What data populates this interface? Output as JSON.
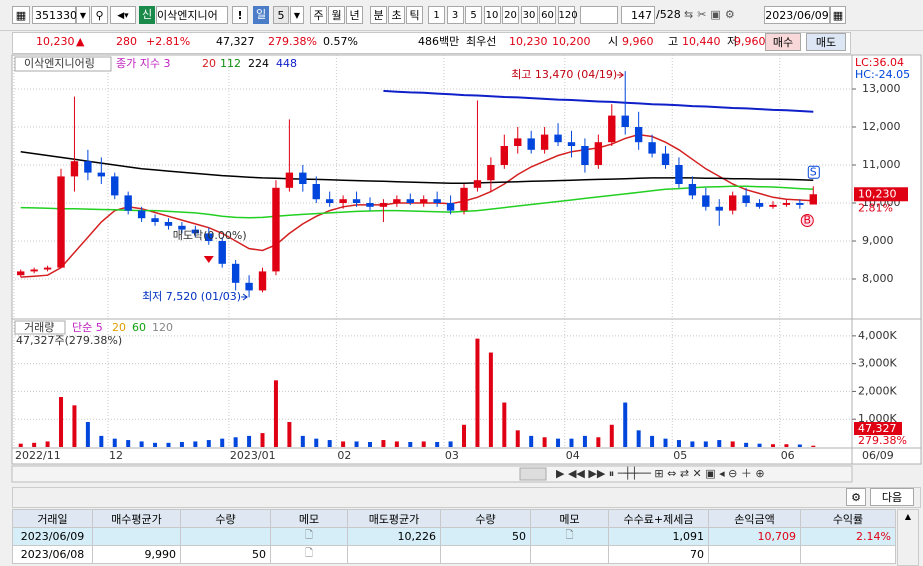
{
  "toolbar": {
    "code": "351330",
    "badge": "신",
    "name": "이삭엔지니어",
    "alert": "!",
    "period": "일",
    "period_n": "5",
    "periods": [
      "주",
      "월",
      "년",
      "분",
      "초",
      "틱"
    ],
    "intervals": [
      "1",
      "3",
      "5",
      "10",
      "20",
      "30",
      "60",
      "120"
    ],
    "count": "147",
    "total": "/528",
    "date": "2023/06/09"
  },
  "quote": {
    "price": "10,230",
    "arrow": "▲",
    "change": "280",
    "change_pct": "+2.81%",
    "volume": "47,327",
    "volume_ratio": "279.38%",
    "turnover": "0.57%",
    "amount": "486백만",
    "best_label": "최우선",
    "ask": "10,230",
    "bid": "10,200",
    "open_label": "시",
    "open": "9,960",
    "high_label": "고",
    "high": "10,440",
    "low_label": "저",
    "low": "9,960",
    "buy": "매수",
    "sell": "매도"
  },
  "chart_data": [
    {
      "type": "candlestick",
      "title": "이삭엔지니어링",
      "indicator": "종가 지수 3",
      "categories": [
        "2022/11",
        null,
        null,
        null,
        null,
        null,
        null,
        "12",
        null,
        null,
        null,
        null,
        null,
        null,
        null,
        null,
        "2023/01",
        null,
        null,
        null,
        null,
        null,
        null,
        null,
        "02",
        null,
        null,
        null,
        null,
        null,
        null,
        null,
        "03",
        null,
        null,
        null,
        null,
        null,
        null,
        null,
        null,
        "04",
        null,
        null,
        null,
        null,
        null,
        null,
        null,
        "05",
        null,
        null,
        null,
        null,
        null,
        null,
        null,
        "06",
        null,
        null
      ],
      "open": [
        8100,
        8200,
        8250,
        8300,
        10700,
        11100,
        10800,
        10700,
        10200,
        9800,
        9600,
        9500,
        9400,
        9300,
        9200,
        9000,
        8400,
        7900,
        7700,
        8200,
        10400,
        10800,
        10500,
        10100,
        10000,
        10100,
        10000,
        9900,
        10000,
        10100,
        10000,
        10100,
        10000,
        9800,
        10400,
        10600,
        11000,
        11500,
        11700,
        11400,
        11800,
        11600,
        11500,
        11000,
        11600,
        12300,
        12000,
        11600,
        11300,
        11000,
        10500,
        10200,
        9900,
        9800,
        10200,
        10000,
        9900,
        9950,
        10000,
        9960
      ],
      "high": [
        8250,
        8300,
        8350,
        10900,
        12800,
        11400,
        11200,
        10800,
        10300,
        9900,
        9700,
        9600,
        9500,
        9400,
        9350,
        9100,
        8500,
        8100,
        8300,
        10600,
        12200,
        11000,
        10700,
        10300,
        10200,
        10300,
        10150,
        10100,
        10200,
        10250,
        10200,
        10300,
        10200,
        10500,
        12700,
        11200,
        11800,
        12000,
        11900,
        12000,
        12100,
        11900,
        11700,
        11800,
        12600,
        13470,
        12400,
        11800,
        11500,
        11200,
        10700,
        10400,
        10100,
        10300,
        10400,
        10100,
        10050,
        10100,
        10100,
        10440
      ],
      "low": [
        8050,
        8150,
        8200,
        8300,
        10300,
        10600,
        10500,
        10100,
        9700,
        9500,
        9400,
        9300,
        9200,
        9100,
        8900,
        8300,
        7700,
        7520,
        7650,
        8100,
        10300,
        10300,
        10000,
        9900,
        9850,
        9900,
        9800,
        9500,
        9900,
        9950,
        9900,
        9900,
        9700,
        9700,
        10300,
        10300,
        10900,
        11300,
        11300,
        11300,
        11500,
        11200,
        10800,
        10900,
        11500,
        11800,
        11400,
        11200,
        10900,
        10400,
        10100,
        9800,
        9400,
        9700,
        9900,
        9850,
        9850,
        9900,
        9850,
        9960
      ],
      "close": [
        8200,
        8250,
        8300,
        10700,
        11100,
        10800,
        10700,
        10200,
        9800,
        9600,
        9500,
        9400,
        9300,
        9200,
        9000,
        8400,
        7900,
        7700,
        8200,
        10400,
        10800,
        10500,
        10100,
        10000,
        10100,
        10000,
        9900,
        10000,
        10100,
        10000,
        10100,
        10000,
        9800,
        10400,
        10600,
        11000,
        11500,
        11700,
        11400,
        11800,
        11600,
        11500,
        11000,
        11600,
        12300,
        12000,
        11600,
        11300,
        11000,
        10500,
        10200,
        9900,
        9800,
        10200,
        10000,
        9900,
        9950,
        10000,
        9950,
        10230
      ],
      "up_color": "#e00014",
      "down_color": "#0046dc",
      "series": [
        {
          "name": "20",
          "color": "#d42020",
          "values": [
            8050,
            8070,
            8100,
            8300,
            8700,
            9100,
            9500,
            9800,
            9900,
            9850,
            9750,
            9650,
            9550,
            9450,
            9350,
            9200,
            9000,
            8800,
            8750,
            8900,
            9200,
            9450,
            9650,
            9800,
            9900,
            9950,
            9950,
            9950,
            10000,
            10000,
            10000,
            10000,
            9980,
            10050,
            10150,
            10300,
            10500,
            10750,
            10950,
            11100,
            11250,
            11350,
            11400,
            11450,
            11550,
            11700,
            11800,
            11750,
            11600,
            11400,
            11150,
            10900,
            10700,
            10500,
            10350,
            10250,
            10150,
            10100,
            10080,
            10060
          ]
        },
        {
          "name": "112",
          "color": "#22d022",
          "values": [
            9880,
            9870,
            9860,
            9850,
            9850,
            9840,
            9830,
            9820,
            9810,
            9800,
            9800,
            9780,
            9760,
            9740,
            9700,
            9650,
            9620,
            9610,
            9620,
            9650,
            9680,
            9700,
            9720,
            9740,
            9760,
            9780,
            9790,
            9800,
            9800,
            9790,
            9780,
            9770,
            9760,
            9780,
            9800,
            9840,
            9880,
            9920,
            9960,
            10000,
            10040,
            10080,
            10120,
            10160,
            10200,
            10240,
            10280,
            10320,
            10360,
            10380,
            10400,
            10420,
            10430,
            10440,
            10440,
            10430,
            10420,
            10400,
            10380,
            10360
          ]
        },
        {
          "name": "224",
          "color": "#000000",
          "values": [
            11350,
            11300,
            11250,
            11200,
            11150,
            11100,
            11050,
            11000,
            10950,
            10900,
            10870,
            10840,
            10810,
            10780,
            10750,
            10720,
            10700,
            10680,
            10660,
            10650,
            10640,
            10630,
            10620,
            10610,
            10600,
            10590,
            10580,
            10570,
            10560,
            10550,
            10540,
            10530,
            10520,
            10520,
            10530,
            10540,
            10550,
            10560,
            10570,
            10580,
            10590,
            10600,
            10610,
            10620,
            10630,
            10640,
            10650,
            10660,
            10660,
            10660,
            10660,
            10650,
            10650,
            10640,
            10640,
            10630,
            10630,
            10620,
            10610,
            10600
          ]
        },
        {
          "name": "448",
          "color": "#1020c8",
          "values": [
            null,
            null,
            null,
            null,
            null,
            null,
            null,
            null,
            null,
            null,
            null,
            null,
            null,
            null,
            null,
            null,
            null,
            null,
            null,
            null,
            null,
            null,
            null,
            null,
            null,
            null,
            null,
            12950,
            12930,
            12910,
            12900,
            12880,
            12860,
            12840,
            12830,
            12810,
            12790,
            12780,
            12760,
            12740,
            12720,
            12710,
            12690,
            12670,
            12660,
            12640,
            12620,
            12600,
            12590,
            12570,
            12550,
            12540,
            12520,
            12500,
            12490,
            12470,
            12450,
            12440,
            12420,
            12400
          ]
        }
      ],
      "ylim": [
        6974,
        13842
      ],
      "yticks": [
        {
          "value": 8000,
          "label": "8,000"
        },
        {
          "value": 9000,
          "label": "9,000"
        },
        {
          "value": 10000,
          "label": "10,000"
        },
        {
          "value": 11000,
          "label": "11,000"
        },
        {
          "value": 12000,
          "label": "12,000"
        },
        {
          "value": 13000,
          "label": "13,000"
        }
      ],
      "lc_label": "LC:36.04",
      "hc_label": "HC:-24.05",
      "high_note": "최고 13,470 (04/19)",
      "low_note": "최저 7,520 (01/03)",
      "event_note": "매도락(0.00%)",
      "sell_marker": "S",
      "buy_marker": "B",
      "last_label": "10,230",
      "last_pct": "2.81%",
      "grid": true
    },
    {
      "type": "bar",
      "title": "거래량",
      "legend": [
        "단순 5",
        "20",
        "60",
        "120"
      ],
      "summary": "47,327주(279.38%)",
      "values": [
        120,
        150,
        200,
        1800,
        1500,
        900,
        400,
        300,
        250,
        200,
        150,
        150,
        180,
        200,
        250,
        300,
        350,
        400,
        500,
        2400,
        900,
        400,
        300,
        250,
        200,
        200,
        180,
        250,
        200,
        180,
        200,
        180,
        200,
        800,
        3900,
        3400,
        1600,
        600,
        400,
        350,
        300,
        300,
        400,
        350,
        800,
        1600,
        600,
        400,
        300,
        250,
        200,
        200,
        250,
        200,
        150,
        120,
        100,
        100,
        90,
        47.327
      ],
      "ylim": [
        0,
        4571
      ],
      "yticks": [
        {
          "value": 1000,
          "label": "1,000K"
        },
        {
          "value": 2000,
          "label": "2,000K"
        },
        {
          "value": 3000,
          "label": "3,000K"
        },
        {
          "value": 4000,
          "label": "4,000K"
        }
      ],
      "last_label": "47,327",
      "last_pct": "279.38%",
      "grid": true
    }
  ],
  "x_end_label": "06/09",
  "next_button": "다음",
  "trade_table": {
    "columns": [
      "거래일",
      "매수평균가",
      "수량",
      "메모",
      "매도평균가",
      "수량",
      "메모",
      "수수료+제세금",
      "손익금액",
      "수익률"
    ],
    "rows": [
      [
        "2023/06/09",
        null,
        null,
        null,
        "10,226",
        "50",
        null,
        "1,091",
        "10,709",
        "2.14%"
      ],
      [
        "2023/06/08",
        "9,990",
        "50",
        null,
        null,
        null,
        null,
        "70",
        null,
        null
      ]
    ]
  }
}
